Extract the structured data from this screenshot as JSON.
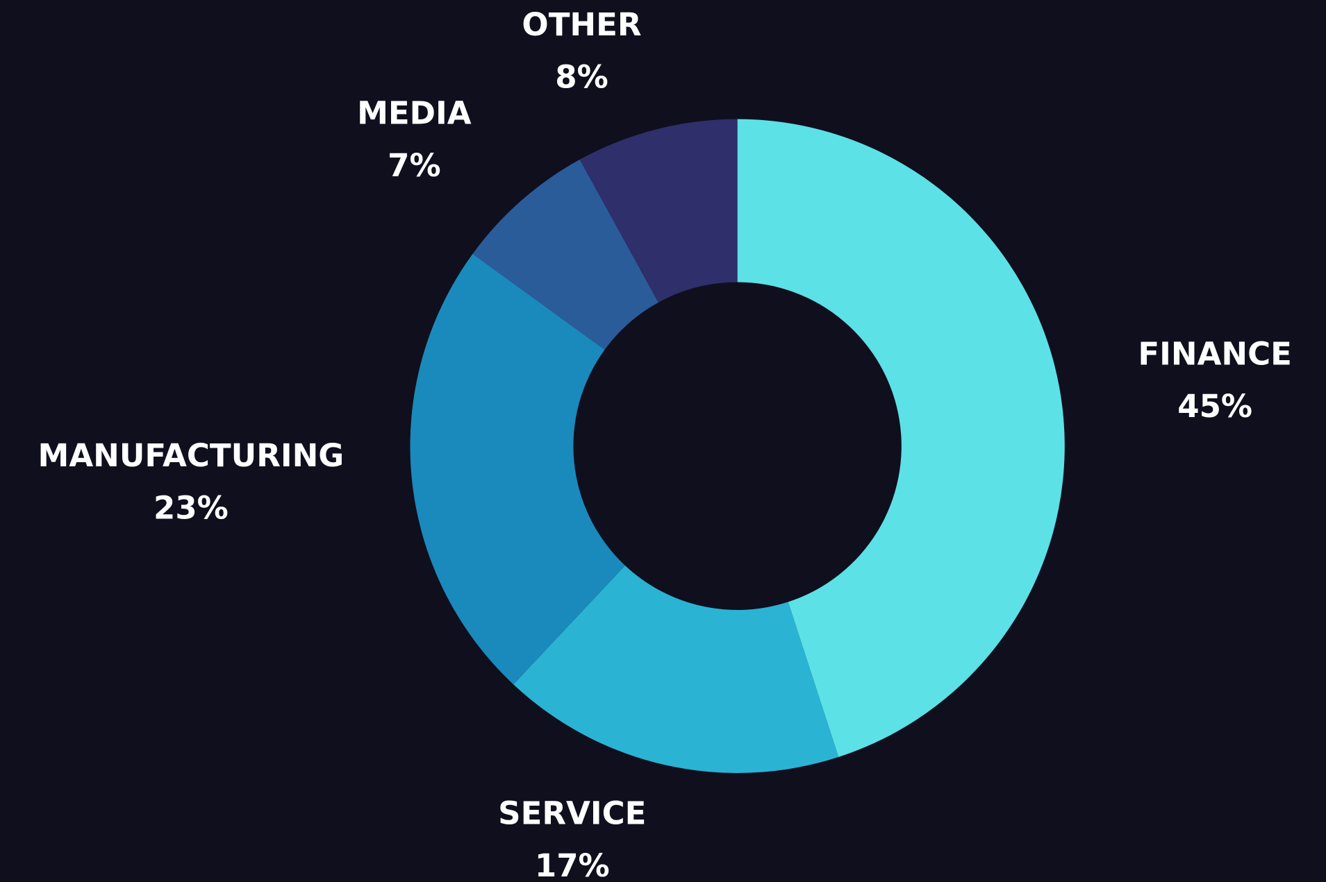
{
  "chart_data": {
    "type": "pie",
    "donut": true,
    "categories": [
      "FINANCE",
      "SERVICE",
      "MANUFACTURING",
      "MEDIA",
      "OTHER"
    ],
    "values": [
      45,
      17,
      23,
      7,
      8
    ],
    "value_labels": [
      "45%",
      "17%",
      "23%",
      "7%",
      "8%"
    ],
    "colors": [
      "#5ce1e6",
      "#2bb3d4",
      "#1a8abc",
      "#2a5c9a",
      "#2f2f6b"
    ]
  }
}
